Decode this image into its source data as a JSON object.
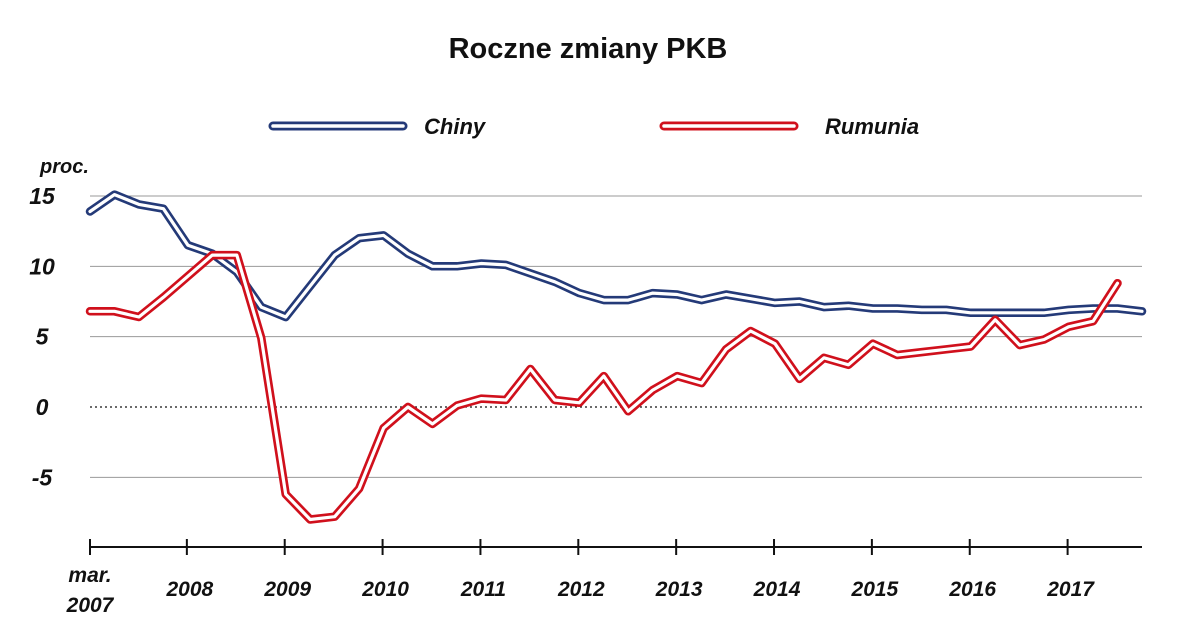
{
  "chart_data": {
    "type": "line",
    "title": "Roczne zmiany PKB",
    "ylabel": "proc.",
    "ylim": [
      -10,
      15
    ],
    "yticks": [
      "15",
      "10",
      "5",
      "0",
      "-5"
    ],
    "ytick_values": [
      15,
      10,
      5,
      0,
      -5
    ],
    "xtick_labels": [
      "mar.",
      "2007",
      "2008",
      "2009",
      "2010",
      "2011",
      "2012",
      "2013",
      "2014",
      "2015",
      "2016",
      "2017"
    ],
    "grid": true,
    "zero_line": "dotted",
    "legend_position": "top",
    "x": [
      "2007-03",
      "2007-06",
      "2007-09",
      "2007-12",
      "2008-03",
      "2008-06",
      "2008-09",
      "2008-12",
      "2009-03",
      "2009-06",
      "2009-09",
      "2009-12",
      "2010-03",
      "2010-06",
      "2010-09",
      "2010-12",
      "2011-03",
      "2011-06",
      "2011-09",
      "2011-12",
      "2012-03",
      "2012-06",
      "2012-09",
      "2012-12",
      "2013-03",
      "2013-06",
      "2013-09",
      "2013-12",
      "2014-03",
      "2014-06",
      "2014-09",
      "2014-12",
      "2015-03",
      "2015-06",
      "2015-09",
      "2015-12",
      "2016-03",
      "2016-06",
      "2016-09",
      "2016-12",
      "2017-03",
      "2017-06",
      "2017-09",
      "2017-12"
    ],
    "series": [
      {
        "name": "Chiny",
        "color": "#243a78",
        "values": [
          13.9,
          15.1,
          14.4,
          14.1,
          11.5,
          10.9,
          9.6,
          7.1,
          6.4,
          8.6,
          10.8,
          12.0,
          12.2,
          10.9,
          10.0,
          10.0,
          10.2,
          10.1,
          9.5,
          8.9,
          8.1,
          7.6,
          7.6,
          8.1,
          8.0,
          7.6,
          8.0,
          7.7,
          7.4,
          7.5,
          7.1,
          7.2,
          7.0,
          7.0,
          6.9,
          6.9,
          6.7,
          6.7,
          6.7,
          6.7,
          6.9,
          7.0,
          7.0,
          6.8
        ],
        "line_style": "double"
      },
      {
        "name": "Rumunia",
        "color": "#d0101c",
        "values": [
          6.8,
          6.8,
          6.4,
          7.8,
          9.3,
          10.8,
          10.8,
          4.9,
          -6.2,
          -8.0,
          -7.8,
          -5.8,
          -1.5,
          0.0,
          -1.2,
          0.1,
          0.6,
          0.5,
          2.7,
          0.5,
          0.3,
          2.2,
          -0.3,
          1.2,
          2.2,
          1.7,
          4.1,
          5.4,
          4.5,
          2.0,
          3.5,
          3.0,
          4.5,
          3.7,
          3.9,
          4.1,
          4.3,
          6.2,
          4.4,
          4.8,
          5.7,
          6.1,
          8.8,
          null
        ],
        "line_style": "double"
      }
    ]
  },
  "colors": {
    "china": "#243a78",
    "romania": "#d0101c",
    "grid": "#999999"
  }
}
